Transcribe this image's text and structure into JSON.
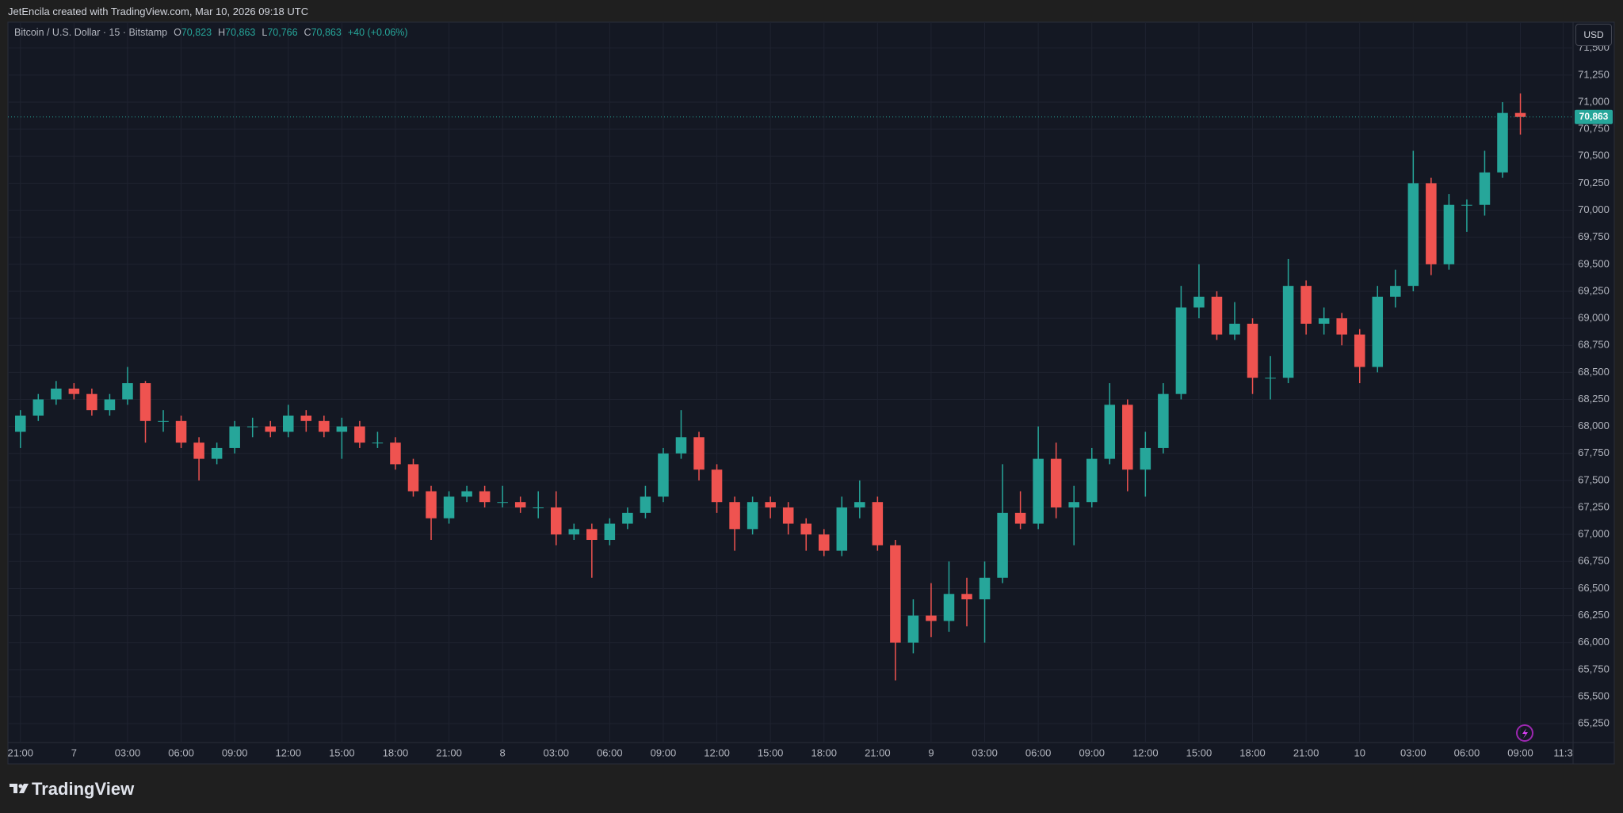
{
  "attribution": "JetEncila created with TradingView.com, Mar 10, 2026 09:18 UTC",
  "logo": "TradingView",
  "currency": "USD",
  "chart_data": {
    "type": "candlestick",
    "legend": {
      "symbol": "Bitcoin / U.S. Dollar · 15 · Bitstamp",
      "o_label": "O",
      "o": "70,823",
      "h_label": "H",
      "h": "70,863",
      "l_label": "L",
      "l": "70,766",
      "c_label": "C",
      "c": "70,863",
      "change": "+40 (+0.06%)"
    },
    "up_color": "#26a69a",
    "down_color": "#ef5350",
    "grid": true,
    "x": [
      0,
      1,
      2,
      3,
      4,
      5,
      6,
      7,
      8,
      9,
      10,
      11,
      12,
      13,
      14,
      15,
      16,
      17,
      18,
      19,
      20,
      21,
      22,
      23,
      24,
      25,
      26,
      27,
      28,
      29,
      30,
      31,
      32,
      33,
      34,
      35,
      36,
      37,
      38,
      39,
      40,
      41,
      42,
      43,
      44,
      45,
      46,
      47,
      48,
      49,
      50,
      51,
      52,
      53,
      54,
      55,
      56,
      57,
      58,
      59,
      60,
      61,
      62,
      63,
      64,
      65,
      66,
      67,
      68,
      69,
      70,
      71,
      72,
      73,
      74,
      75,
      76,
      77,
      78,
      79,
      80,
      81,
      82,
      83,
      84
    ],
    "open": [
      67950,
      68100,
      68250,
      68350,
      68300,
      68150,
      68250,
      68400,
      68050,
      68050,
      67850,
      67700,
      67800,
      68000,
      68000,
      67950,
      68100,
      68050,
      67950,
      68000,
      67850,
      67850,
      67650,
      67400,
      67150,
      67350,
      67400,
      67300,
      67300,
      67250,
      67250,
      67000,
      67050,
      66950,
      67100,
      67200,
      67350,
      67750,
      67900,
      67600,
      67300,
      67050,
      67300,
      67250,
      67100,
      67000,
      66850,
      67250,
      67300,
      66900,
      66000,
      66250,
      66200,
      66450,
      66400,
      66600,
      67200,
      67100,
      67700,
      67250,
      67300,
      67700,
      68200,
      67600,
      67800,
      68300,
      69100,
      69200,
      68850,
      68950,
      68450,
      68450,
      69300,
      68950,
      69000,
      68850,
      68550,
      69200,
      69300,
      70250,
      69500,
      70050,
      70050,
      70350,
      70900
    ],
    "high": [
      68150,
      68300,
      68420,
      68400,
      68350,
      68300,
      68550,
      68420,
      68150,
      68100,
      67900,
      67850,
      68050,
      68080,
      68050,
      68200,
      68150,
      68100,
      68080,
      68050,
      67950,
      67900,
      67700,
      67450,
      67400,
      67450,
      67450,
      67450,
      67350,
      67400,
      67400,
      67100,
      67100,
      67150,
      67250,
      67450,
      67800,
      68150,
      67950,
      67650,
      67350,
      67350,
      67350,
      67300,
      67150,
      67050,
      67350,
      67500,
      67350,
      66950,
      66400,
      66550,
      66750,
      66600,
      66750,
      67650,
      67400,
      68000,
      67850,
      67450,
      67800,
      68400,
      68250,
      67950,
      68400,
      69300,
      69500,
      69250,
      69150,
      69000,
      68650,
      69550,
      69350,
      69100,
      69050,
      68900,
      69300,
      69450,
      70550,
      70300,
      70150,
      70100,
      70550,
      71000,
      71080
    ],
    "low": [
      67800,
      68050,
      68200,
      68250,
      68100,
      68100,
      68200,
      67850,
      67950,
      67800,
      67500,
      67650,
      67750,
      67900,
      67900,
      67900,
      67950,
      67900,
      67700,
      67800,
      67800,
      67600,
      67350,
      66950,
      67100,
      67300,
      67250,
      67250,
      67200,
      67150,
      66900,
      66950,
      66600,
      66900,
      67050,
      67150,
      67300,
      67700,
      67500,
      67200,
      66850,
      67000,
      67150,
      67000,
      66850,
      66800,
      66800,
      67150,
      66850,
      65650,
      65900,
      66050,
      66100,
      66150,
      66000,
      66550,
      67050,
      67050,
      67150,
      66900,
      67250,
      67650,
      67400,
      67350,
      67750,
      68250,
      69000,
      68800,
      68800,
      68300,
      68250,
      68400,
      68850,
      68850,
      68750,
      68400,
      68500,
      69100,
      69250,
      69400,
      69450,
      69800,
      69950,
      70300,
      70700
    ],
    "close": [
      68100,
      68250,
      68350,
      68300,
      68150,
      68250,
      68400,
      68050,
      68050,
      67850,
      67700,
      67800,
      68000,
      68000,
      67950,
      68100,
      68050,
      67950,
      68000,
      67850,
      67850,
      67650,
      67400,
      67150,
      67350,
      67400,
      67300,
      67300,
      67250,
      67250,
      67000,
      67050,
      66950,
      67100,
      67200,
      67350,
      67750,
      67900,
      67600,
      67300,
      67050,
      67300,
      67250,
      67100,
      67000,
      66850,
      67250,
      67300,
      66900,
      66000,
      66250,
      66200,
      66450,
      66400,
      66600,
      67200,
      67100,
      67700,
      67250,
      67300,
      67700,
      68200,
      67600,
      67800,
      68300,
      69100,
      69200,
      68850,
      68950,
      68450,
      68450,
      69300,
      68950,
      69000,
      68850,
      68550,
      69200,
      69300,
      70250,
      69500,
      70050,
      70050,
      70350,
      70900,
      70863
    ],
    "xlim": [
      -0.7,
      86.95
    ],
    "ylim": [
      65075,
      71740
    ],
    "xticks": [
      {
        "value": 0,
        "label": "21:00"
      },
      {
        "value": 3,
        "label": "7"
      },
      {
        "value": 6,
        "label": "03:00"
      },
      {
        "value": 9,
        "label": "06:00"
      },
      {
        "value": 12,
        "label": "09:00"
      },
      {
        "value": 15,
        "label": "12:00"
      },
      {
        "value": 18,
        "label": "15:00"
      },
      {
        "value": 21,
        "label": "18:00"
      },
      {
        "value": 24,
        "label": "21:00"
      },
      {
        "value": 27,
        "label": "8"
      },
      {
        "value": 30,
        "label": "03:00"
      },
      {
        "value": 33,
        "label": "06:00"
      },
      {
        "value": 36,
        "label": "09:00"
      },
      {
        "value": 39,
        "label": "12:00"
      },
      {
        "value": 42,
        "label": "15:00"
      },
      {
        "value": 45,
        "label": "18:00"
      },
      {
        "value": 48,
        "label": "21:00"
      },
      {
        "value": 51,
        "label": "9"
      },
      {
        "value": 54,
        "label": "03:00"
      },
      {
        "value": 57,
        "label": "06:00"
      },
      {
        "value": 60,
        "label": "09:00"
      },
      {
        "value": 63,
        "label": "12:00"
      },
      {
        "value": 66,
        "label": "15:00"
      },
      {
        "value": 69,
        "label": "18:00"
      },
      {
        "value": 72,
        "label": "21:00"
      },
      {
        "value": 75,
        "label": "10"
      },
      {
        "value": 78,
        "label": "03:00"
      },
      {
        "value": 81,
        "label": "06:00"
      },
      {
        "value": 84,
        "label": "09:00"
      },
      {
        "value": 86.4,
        "label": "11:3"
      }
    ],
    "yticks": [
      {
        "value": 65250,
        "label": "65,250"
      },
      {
        "value": 65500,
        "label": "65,500"
      },
      {
        "value": 65750,
        "label": "65,750"
      },
      {
        "value": 66000,
        "label": "66,000"
      },
      {
        "value": 66250,
        "label": "66,250"
      },
      {
        "value": 66500,
        "label": "66,500"
      },
      {
        "value": 66750,
        "label": "66,750"
      },
      {
        "value": 67000,
        "label": "67,000"
      },
      {
        "value": 67250,
        "label": "67,250"
      },
      {
        "value": 67500,
        "label": "67,500"
      },
      {
        "value": 67750,
        "label": "67,750"
      },
      {
        "value": 68000,
        "label": "68,000"
      },
      {
        "value": 68250,
        "label": "68,250"
      },
      {
        "value": 68500,
        "label": "68,500"
      },
      {
        "value": 68750,
        "label": "68,750"
      },
      {
        "value": 69000,
        "label": "69,000"
      },
      {
        "value": 69250,
        "label": "69,250"
      },
      {
        "value": 69500,
        "label": "69,500"
      },
      {
        "value": 69750,
        "label": "69,750"
      },
      {
        "value": 70000,
        "label": "70,000"
      },
      {
        "value": 70250,
        "label": "70,250"
      },
      {
        "value": 70500,
        "label": "70,500"
      },
      {
        "value": 70750,
        "label": "70,750"
      },
      {
        "value": 71000,
        "label": "71,000"
      },
      {
        "value": 71250,
        "label": "71,250"
      },
      {
        "value": 71500,
        "label": "71,500"
      }
    ],
    "last_price": {
      "value": 70863,
      "label": "70,863"
    }
  }
}
